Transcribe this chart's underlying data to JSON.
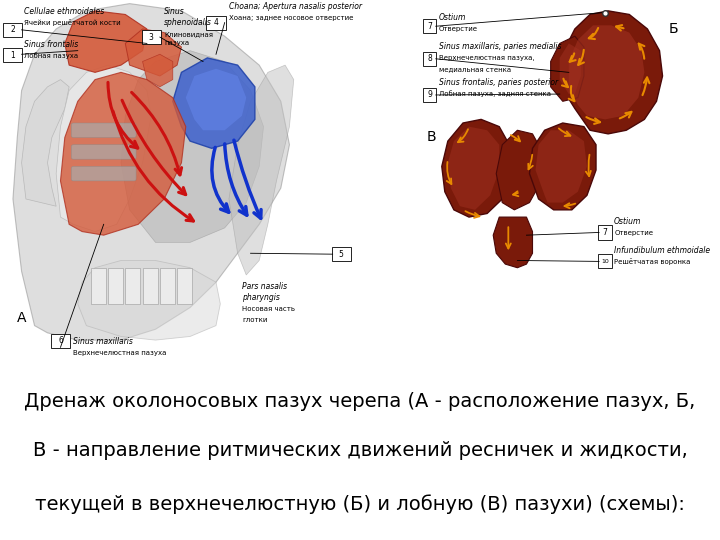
{
  "caption_lines": [
    "Дренаж околоносовых пазух черепа (А - расположение пазух, Б,",
    "В - направление ритмических движений ресничек и жидкости,",
    "текущей в верхнечелюстную (Б) и лобную (В) пазухи) (схемы):"
  ],
  "bg_color": "#ffffff",
  "text_color": "#000000",
  "caption_fontsize": 14,
  "skull_gray": "#b8b8b8",
  "nasal_white": "#e0e0e0",
  "frontal_red": "#d45a3a",
  "maxillary_red": "#d45a3a",
  "maxillary_red_alpha": 0.85,
  "sphenoid_blue": "#4466cc",
  "dark_red_brown": "#7a1a0a",
  "med_red_brown": "#9b2a1a",
  "orange_arrow": "#e88a00",
  "red_arrow": "#cc1111",
  "blue_arrow": "#1133cc"
}
